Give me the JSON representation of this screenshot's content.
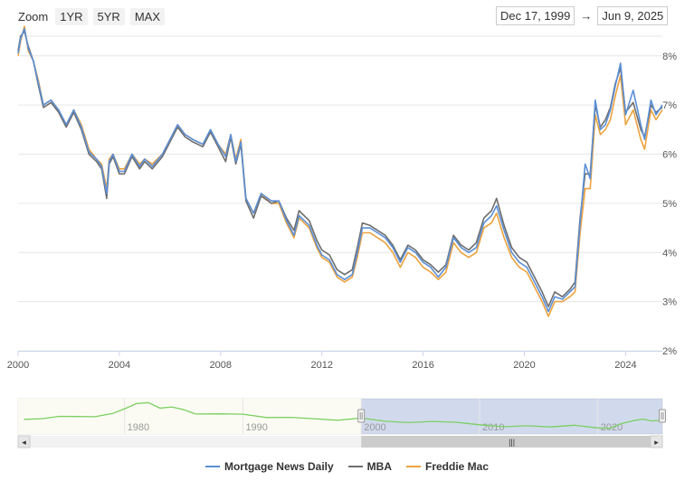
{
  "zoom": {
    "label": "Zoom",
    "buttons": [
      "1YR",
      "5YR",
      "MAX"
    ]
  },
  "range": {
    "from": "Dec 17, 1999",
    "arrow": "→",
    "to": "Jun 9, 2025"
  },
  "colors": {
    "mnd": "#5b8fd6",
    "mba": "#6e6e6e",
    "freddie": "#eda23f",
    "navigator": "#7ccf62",
    "grid": "#e6e6e6"
  },
  "chart_data": {
    "type": "line",
    "xlabel": "",
    "ylabel": "",
    "x_ticks": [
      "2000",
      "2004",
      "2008",
      "2012",
      "2016",
      "2020",
      "2024"
    ],
    "y_ticks": [
      "2%",
      "3%",
      "4%",
      "5%",
      "6%",
      "7%",
      "8%"
    ],
    "xlim": [
      2000.0,
      2025.45
    ],
    "ylim": [
      2.0,
      8.4
    ],
    "grid": true,
    "legend": "bottom",
    "series": [
      {
        "name": "Freddie Mac",
        "x": [
          2000.0,
          2000.1,
          2000.25,
          2000.4,
          2000.6,
          2000.8,
          2001.0,
          2001.3,
          2001.6,
          2001.9,
          2002.2,
          2002.5,
          2002.8,
          2003.1,
          2003.3,
          2003.5,
          2003.6,
          2003.75,
          2004.0,
          2004.2,
          2004.5,
          2004.8,
          2005.0,
          2005.3,
          2005.7,
          2006.0,
          2006.3,
          2006.6,
          2006.9,
          2007.3,
          2007.6,
          2007.9,
          2008.2,
          2008.4,
          2008.6,
          2008.8,
          2009.0,
          2009.3,
          2009.6,
          2010.0,
          2010.3,
          2010.6,
          2010.9,
          2011.1,
          2011.5,
          2011.8,
          2012.0,
          2012.3,
          2012.6,
          2012.9,
          2013.2,
          2013.4,
          2013.6,
          2013.9,
          2014.2,
          2014.5,
          2014.8,
          2015.1,
          2015.4,
          2015.7,
          2016.0,
          2016.3,
          2016.6,
          2016.9,
          2017.2,
          2017.5,
          2017.8,
          2018.1,
          2018.4,
          2018.7,
          2018.9,
          2019.2,
          2019.5,
          2019.8,
          2020.1,
          2020.4,
          2020.7,
          2020.95,
          2021.2,
          2021.5,
          2021.8,
          2022.0,
          2022.2,
          2022.4,
          2022.6,
          2022.8,
          2023.0,
          2023.2,
          2023.4,
          2023.6,
          2023.8,
          2024.0,
          2024.3,
          2024.6,
          2024.75,
          2025.0,
          2025.2,
          2025.45
        ],
        "y": [
          8.0,
          8.3,
          8.6,
          8.1,
          7.9,
          7.5,
          7.0,
          7.1,
          6.9,
          6.6,
          6.9,
          6.6,
          6.1,
          5.9,
          5.8,
          5.3,
          5.9,
          6.0,
          5.7,
          5.7,
          6.0,
          5.8,
          5.9,
          5.8,
          6.0,
          6.3,
          6.6,
          6.4,
          6.3,
          6.2,
          6.5,
          6.2,
          6.0,
          6.4,
          5.9,
          6.3,
          5.1,
          4.8,
          5.2,
          5.0,
          5.0,
          4.6,
          4.3,
          4.7,
          4.5,
          4.1,
          3.9,
          3.8,
          3.5,
          3.4,
          3.5,
          3.9,
          4.4,
          4.4,
          4.3,
          4.2,
          4.0,
          3.7,
          4.0,
          3.9,
          3.7,
          3.6,
          3.45,
          3.6,
          4.2,
          4.0,
          3.9,
          4.0,
          4.5,
          4.6,
          4.8,
          4.3,
          3.9,
          3.7,
          3.6,
          3.3,
          3.0,
          2.7,
          3.0,
          3.0,
          3.1,
          3.2,
          4.4,
          5.3,
          5.3,
          6.8,
          6.4,
          6.5,
          6.7,
          7.2,
          7.6,
          6.6,
          6.9,
          6.3,
          6.1,
          6.9,
          6.7,
          6.9
        ]
      },
      {
        "name": "MBA",
        "x": [
          2000.0,
          2000.1,
          2000.25,
          2000.4,
          2000.6,
          2000.8,
          2001.0,
          2001.3,
          2001.6,
          2001.9,
          2002.2,
          2002.5,
          2002.8,
          2003.1,
          2003.3,
          2003.5,
          2003.6,
          2003.75,
          2004.0,
          2004.2,
          2004.5,
          2004.8,
          2005.0,
          2005.3,
          2005.7,
          2006.0,
          2006.3,
          2006.6,
          2006.9,
          2007.3,
          2007.6,
          2007.9,
          2008.2,
          2008.4,
          2008.6,
          2008.8,
          2009.0,
          2009.3,
          2009.6,
          2010.0,
          2010.3,
          2010.6,
          2010.9,
          2011.1,
          2011.5,
          2011.8,
          2012.0,
          2012.3,
          2012.6,
          2012.9,
          2013.2,
          2013.4,
          2013.6,
          2013.9,
          2014.2,
          2014.5,
          2014.8,
          2015.1,
          2015.4,
          2015.7,
          2016.0,
          2016.3,
          2016.6,
          2016.9,
          2017.2,
          2017.5,
          2017.8,
          2018.1,
          2018.4,
          2018.7,
          2018.9,
          2019.2,
          2019.5,
          2019.8,
          2020.1,
          2020.4,
          2020.7,
          2020.95,
          2021.2,
          2021.5,
          2021.8,
          2022.0,
          2022.2,
          2022.4,
          2022.6,
          2022.8,
          2023.0,
          2023.2,
          2023.4,
          2023.6,
          2023.8,
          2024.0,
          2024.3,
          2024.6,
          2024.75,
          2025.0,
          2025.2,
          2025.45
        ],
        "y": [
          8.1,
          8.4,
          8.5,
          8.2,
          7.9,
          7.4,
          6.95,
          7.05,
          6.85,
          6.55,
          6.85,
          6.5,
          6.0,
          5.85,
          5.7,
          5.1,
          5.8,
          5.95,
          5.6,
          5.6,
          5.95,
          5.7,
          5.85,
          5.7,
          5.95,
          6.25,
          6.55,
          6.35,
          6.25,
          6.15,
          6.45,
          6.15,
          5.85,
          6.35,
          5.8,
          6.2,
          5.05,
          4.7,
          5.15,
          5.0,
          5.05,
          4.7,
          4.45,
          4.85,
          4.65,
          4.25,
          4.05,
          3.95,
          3.65,
          3.55,
          3.65,
          4.1,
          4.6,
          4.55,
          4.45,
          4.35,
          4.15,
          3.85,
          4.15,
          4.05,
          3.85,
          3.75,
          3.6,
          3.75,
          4.35,
          4.15,
          4.05,
          4.2,
          4.7,
          4.85,
          5.1,
          4.55,
          4.1,
          3.9,
          3.8,
          3.5,
          3.2,
          2.9,
          3.2,
          3.1,
          3.25,
          3.4,
          4.7,
          5.6,
          5.6,
          7.0,
          6.55,
          6.7,
          6.95,
          7.45,
          7.75,
          6.85,
          7.05,
          6.5,
          6.35,
          7.0,
          6.85,
          6.95
        ]
      },
      {
        "name": "Mortgage News Daily",
        "x": [
          2000.0,
          2000.1,
          2000.25,
          2000.4,
          2000.6,
          2000.8,
          2001.0,
          2001.3,
          2001.6,
          2001.9,
          2002.2,
          2002.5,
          2002.8,
          2003.1,
          2003.3,
          2003.5,
          2003.6,
          2003.75,
          2004.0,
          2004.2,
          2004.5,
          2004.8,
          2005.0,
          2005.3,
          2005.7,
          2006.0,
          2006.3,
          2006.6,
          2006.9,
          2007.3,
          2007.6,
          2007.9,
          2008.2,
          2008.4,
          2008.6,
          2008.8,
          2009.0,
          2009.3,
          2009.6,
          2010.0,
          2010.3,
          2010.6,
          2010.9,
          2011.1,
          2011.5,
          2011.8,
          2012.0,
          2012.3,
          2012.6,
          2012.9,
          2013.2,
          2013.4,
          2013.6,
          2013.9,
          2014.2,
          2014.5,
          2014.8,
          2015.1,
          2015.4,
          2015.7,
          2016.0,
          2016.3,
          2016.6,
          2016.9,
          2017.2,
          2017.5,
          2017.8,
          2018.1,
          2018.4,
          2018.7,
          2018.9,
          2019.2,
          2019.5,
          2019.8,
          2020.1,
          2020.4,
          2020.7,
          2020.95,
          2021.2,
          2021.5,
          2021.8,
          2022.0,
          2022.2,
          2022.4,
          2022.6,
          2022.8,
          2023.0,
          2023.2,
          2023.4,
          2023.6,
          2023.8,
          2024.0,
          2024.3,
          2024.6,
          2024.75,
          2025.0,
          2025.2,
          2025.45
        ],
        "y": [
          8.05,
          8.35,
          8.55,
          8.15,
          7.9,
          7.45,
          7.0,
          7.1,
          6.9,
          6.6,
          6.9,
          6.55,
          6.05,
          5.9,
          5.75,
          5.2,
          5.85,
          6.0,
          5.65,
          5.65,
          6.0,
          5.75,
          5.9,
          5.75,
          6.0,
          6.3,
          6.6,
          6.4,
          6.3,
          6.2,
          6.5,
          6.2,
          5.95,
          6.4,
          5.85,
          6.25,
          5.1,
          4.8,
          5.2,
          5.05,
          5.05,
          4.65,
          4.35,
          4.75,
          4.55,
          4.15,
          3.95,
          3.85,
          3.55,
          3.45,
          3.55,
          4.0,
          4.5,
          4.5,
          4.4,
          4.3,
          4.1,
          3.8,
          4.1,
          4.0,
          3.8,
          3.7,
          3.5,
          3.7,
          4.3,
          4.1,
          4.0,
          4.1,
          4.6,
          4.75,
          4.95,
          4.45,
          4.0,
          3.8,
          3.7,
          3.4,
          3.1,
          2.8,
          3.1,
          3.05,
          3.2,
          3.3,
          4.6,
          5.8,
          5.5,
          7.1,
          6.5,
          6.6,
          6.9,
          7.4,
          7.85,
          6.8,
          7.3,
          6.6,
          6.3,
          7.1,
          6.8,
          7.0
        ]
      }
    ],
    "navigator": {
      "x_ticks": [
        "1980",
        "1990",
        "2000",
        "2010",
        "2020"
      ],
      "xlim": [
        1971.0,
        2025.45
      ],
      "x": [
        1971.5,
        1973.0,
        1974.5,
        1976.0,
        1977.5,
        1979.0,
        1980.0,
        1981.0,
        1982.0,
        1983.0,
        1984.0,
        1985.0,
        1986.0,
        1988.0,
        1990.0,
        1992.0,
        1994.0,
        1996.0,
        1998.0,
        2000.0,
        2002.0,
        2004.0,
        2006.0,
        2008.0,
        2010.0,
        2012.0,
        2014.0,
        2016.0,
        2018.0,
        2020.0,
        2021.0,
        2022.0,
        2023.0,
        2023.8,
        2024.5,
        2025.45
      ],
      "y": [
        7.5,
        7.8,
        9.0,
        8.9,
        8.8,
        10.5,
        12.9,
        15.5,
        16.0,
        13.2,
        13.8,
        12.4,
        10.2,
        10.3,
        10.1,
        8.4,
        8.5,
        7.8,
        7.0,
        8.1,
        6.5,
        5.8,
        6.4,
        6.0,
        4.7,
        3.7,
        4.2,
        3.6,
        4.5,
        3.1,
        2.9,
        5.3,
        6.8,
        7.6,
        6.7,
        6.9
      ],
      "ylim": [
        0,
        18
      ],
      "selection": [
        2000.0,
        2025.45
      ]
    }
  },
  "legend": [
    {
      "label": "Mortgage News Daily",
      "color": "#5b8fd6"
    },
    {
      "label": "MBA",
      "color": "#6e6e6e"
    },
    {
      "label": "Freddie Mac",
      "color": "#eda23f"
    }
  ],
  "scrollbar": {
    "grip": "|||",
    "left_arrow": "◂",
    "right_arrow": "▸"
  }
}
